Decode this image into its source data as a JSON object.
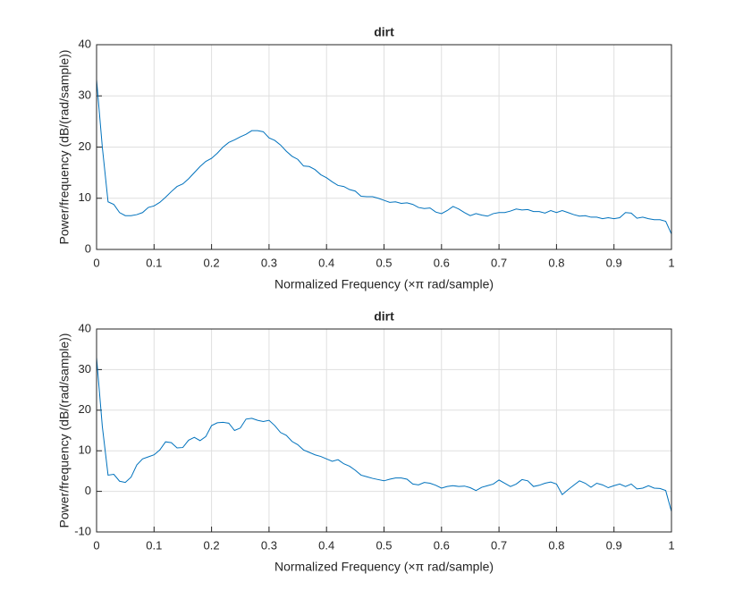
{
  "chart_data": [
    {
      "type": "line",
      "title": "dirt",
      "xlabel": "Normalized Frequency  (×π rad/sample)",
      "ylabel": "Power/frequency (dB/(rad/sample))",
      "x": [
        0,
        0.01,
        0.02,
        0.03,
        0.04,
        0.05,
        0.06,
        0.07,
        0.08,
        0.09,
        0.1,
        0.11,
        0.12,
        0.13,
        0.14,
        0.15,
        0.16,
        0.17,
        0.18,
        0.19,
        0.2,
        0.21,
        0.22,
        0.23,
        0.24,
        0.25,
        0.26,
        0.27,
        0.28,
        0.29,
        0.3,
        0.31,
        0.32,
        0.33,
        0.34,
        0.35,
        0.36,
        0.37,
        0.38,
        0.39,
        0.4,
        0.41,
        0.42,
        0.43,
        0.44,
        0.45,
        0.46,
        0.47,
        0.48,
        0.49,
        0.5,
        0.51,
        0.52,
        0.53,
        0.54,
        0.55,
        0.56,
        0.57,
        0.58,
        0.59,
        0.6,
        0.61,
        0.62,
        0.63,
        0.64,
        0.65,
        0.66,
        0.67,
        0.68,
        0.69,
        0.7,
        0.71,
        0.72,
        0.73,
        0.74,
        0.75,
        0.76,
        0.77,
        0.78,
        0.79,
        0.8,
        0.81,
        0.82,
        0.83,
        0.84,
        0.85,
        0.86,
        0.87,
        0.88,
        0.89,
        0.9,
        0.91,
        0.92,
        0.93,
        0.94,
        0.95,
        0.96,
        0.97,
        0.98,
        0.99,
        1
      ],
      "series": [
        {
          "color": "#0072bd",
          "values": [
            33.2,
            20,
            9.3,
            8.8,
            7.2,
            6.6,
            6.6,
            6.8,
            7.2,
            8.2,
            8.5,
            9.2,
            10.2,
            11.3,
            12.3,
            12.8,
            13.8,
            15.0,
            16.2,
            17.2,
            17.8,
            18.8,
            20.0,
            20.9,
            21.4,
            22.0,
            22.5,
            23.2,
            23.2,
            23.0,
            21.8,
            21.3,
            20.4,
            19.2,
            18.2,
            17.6,
            16.3,
            16.2,
            15.6,
            14.6,
            14.0,
            13.2,
            12.5,
            12.3,
            11.7,
            11.4,
            10.4,
            10.3,
            10.3,
            10.0,
            9.6,
            9.2,
            9.3,
            9.0,
            9.1,
            8.8,
            8.2,
            8.0,
            8.1,
            7.3,
            7.0,
            7.6,
            8.4,
            7.9,
            7.2,
            6.6,
            7.0,
            6.7,
            6.5,
            7.0,
            7.2,
            7.2,
            7.5,
            7.9,
            7.7,
            7.8,
            7.4,
            7.4,
            7.1,
            7.6,
            7.2,
            7.6,
            7.2,
            6.8,
            6.5,
            6.6,
            6.3,
            6.3,
            6.0,
            6.2,
            6.0,
            6.2,
            7.2,
            7.1,
            6.1,
            6.3,
            6.0,
            5.8,
            5.8,
            5.5,
            3.0
          ]
        }
      ],
      "xlim": [
        0,
        1
      ],
      "ylim": [
        0,
        40
      ],
      "xticks": [
        0,
        0.1,
        0.2,
        0.3,
        0.4,
        0.5,
        0.6,
        0.7,
        0.8,
        0.9,
        1
      ],
      "yticks": [
        0,
        10,
        20,
        30,
        40
      ],
      "grid": true
    },
    {
      "type": "line",
      "title": "dirt",
      "xlabel": "Normalized Frequency  (×π rad/sample)",
      "ylabel": "Power/frequency (dB/(rad/sample))",
      "x": [
        0,
        0.01,
        0.02,
        0.03,
        0.04,
        0.05,
        0.06,
        0.07,
        0.08,
        0.09,
        0.1,
        0.11,
        0.12,
        0.13,
        0.14,
        0.15,
        0.16,
        0.17,
        0.18,
        0.19,
        0.2,
        0.21,
        0.22,
        0.23,
        0.24,
        0.25,
        0.26,
        0.27,
        0.28,
        0.29,
        0.3,
        0.31,
        0.32,
        0.33,
        0.34,
        0.35,
        0.36,
        0.37,
        0.38,
        0.39,
        0.4,
        0.41,
        0.42,
        0.43,
        0.44,
        0.45,
        0.46,
        0.47,
        0.48,
        0.49,
        0.5,
        0.51,
        0.52,
        0.53,
        0.54,
        0.55,
        0.56,
        0.57,
        0.58,
        0.59,
        0.6,
        0.61,
        0.62,
        0.63,
        0.64,
        0.65,
        0.66,
        0.67,
        0.68,
        0.69,
        0.7,
        0.71,
        0.72,
        0.73,
        0.74,
        0.75,
        0.76,
        0.77,
        0.78,
        0.79,
        0.8,
        0.81,
        0.82,
        0.83,
        0.84,
        0.85,
        0.86,
        0.87,
        0.88,
        0.89,
        0.9,
        0.91,
        0.92,
        0.93,
        0.94,
        0.95,
        0.96,
        0.97,
        0.98,
        0.99,
        1
      ],
      "series": [
        {
          "color": "#0072bd",
          "values": [
            33,
            16,
            4.0,
            4.2,
            2.5,
            2.2,
            3.5,
            6.5,
            8.0,
            8.5,
            9.0,
            10.2,
            12.2,
            12.0,
            10.7,
            10.8,
            12.6,
            13.3,
            12.5,
            13.5,
            16.2,
            16.9,
            17.0,
            16.8,
            15.0,
            15.6,
            17.8,
            18.0,
            17.5,
            17.2,
            17.5,
            16.2,
            14.5,
            13.8,
            12.3,
            11.5,
            10.2,
            9.6,
            9.0,
            8.6,
            8.0,
            7.4,
            7.8,
            6.8,
            6.2,
            5.2,
            4.0,
            3.6,
            3.2,
            2.9,
            2.6,
            3.0,
            3.3,
            3.3,
            3.0,
            1.8,
            1.6,
            2.2,
            2.0,
            1.5,
            0.8,
            1.2,
            1.4,
            1.2,
            1.3,
            0.9,
            0.2,
            1.0,
            1.4,
            1.8,
            2.8,
            2.0,
            1.2,
            1.8,
            2.9,
            2.6,
            1.2,
            1.5,
            2.0,
            2.3,
            1.8,
            -0.8,
            0.4,
            1.5,
            2.6,
            2.0,
            1.0,
            2.0,
            1.6,
            0.9,
            1.4,
            1.8,
            1.2,
            1.8,
            0.6,
            0.8,
            1.4,
            0.8,
            0.7,
            0.2,
            -5.0
          ]
        }
      ],
      "xlim": [
        0,
        1
      ],
      "ylim": [
        -10,
        40
      ],
      "xticks": [
        0,
        0.1,
        0.2,
        0.3,
        0.4,
        0.5,
        0.6,
        0.7,
        0.8,
        0.9,
        1
      ],
      "yticks": [
        -10,
        0,
        10,
        20,
        30,
        40
      ],
      "grid": true
    }
  ]
}
